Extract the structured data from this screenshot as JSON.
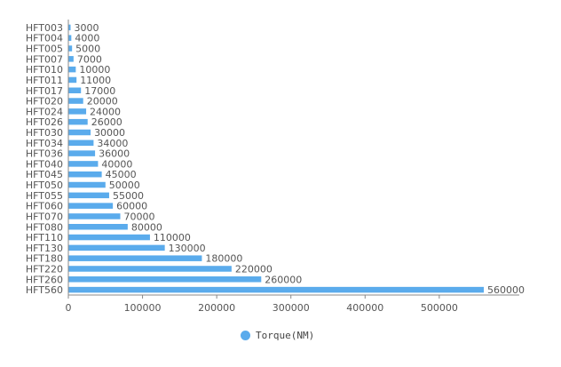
{
  "chart_data": {
    "type": "bar",
    "orientation": "horizontal",
    "categories": [
      "HFT003",
      "HFT004",
      "HFT005",
      "HFT007",
      "HFT010",
      "HFT011",
      "HFT017",
      "HFT020",
      "HFT024",
      "HFT026",
      "HFT030",
      "HFT034",
      "HFT036",
      "HFT040",
      "HFT045",
      "HFT050",
      "HFT055",
      "HFT060",
      "HFT070",
      "HFT080",
      "HFT110",
      "HFT130",
      "HFT180",
      "HFT220",
      "HFT260",
      "HFT560"
    ],
    "series": [
      {
        "name": "Torque(NM)",
        "values": [
          3000,
          4000,
          5000,
          7000,
          10000,
          11000,
          17000,
          20000,
          24000,
          26000,
          30000,
          34000,
          36000,
          40000,
          45000,
          50000,
          55000,
          60000,
          70000,
          80000,
          110000,
          130000,
          180000,
          220000,
          260000,
          560000
        ]
      }
    ],
    "x_ticks": [
      "0",
      "100000",
      "200000",
      "300000",
      "400000",
      "500000"
    ],
    "xlim": [
      0,
      560000
    ],
    "legend_position": "bottom",
    "grid": false,
    "color": "#5aabec"
  }
}
